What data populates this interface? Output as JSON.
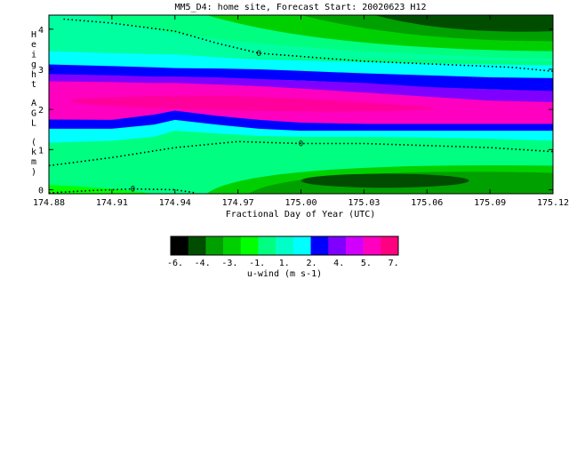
{
  "chart_data": {
    "type": "contour",
    "title": "MM5_D4: home site,  Forecast Start: 20020623 H12",
    "xlabel": "Fractional Day of Year (UTC)",
    "ylabel": "Height AGL (km)",
    "xlim": [
      174.88,
      175.12
    ],
    "ylim": [
      -0.1,
      4.35
    ],
    "x_ticks": [
      "174.88",
      "174.91",
      "174.94",
      "174.97",
      "175.00",
      "175.03",
      "175.06",
      "175.09",
      "175.12"
    ],
    "y_ticks": [
      "0",
      "1",
      "2",
      "3",
      "4"
    ],
    "zero_contour_label": "0",
    "colorbar": {
      "label": "u-wind (m s-1)",
      "tick_labels": [
        "-6.",
        "-4.",
        "-3.",
        "-1.",
        "1.",
        "2.",
        "4.",
        "5.",
        "7."
      ],
      "colors": [
        "#000000",
        "#004d00",
        "#00a000",
        "#00d000",
        "#00ff00",
        "#00ff80",
        "#00ffc8",
        "#00ffff",
        "#0000ff",
        "#8000ff",
        "#d000ff",
        "#ff00c0",
        "#ff0080"
      ]
    },
    "field_bands": [
      {
        "label": "top dark negative core",
        "color": "#004d00",
        "x": [
          174.99,
          175.12
        ],
        "y": [
          3.85,
          4.25
        ]
      },
      {
        "label": "upper negative zone",
        "color": "#00d000",
        "x": [
          174.96,
          175.12
        ],
        "y": [
          3.55,
          4.25
        ]
      },
      {
        "label": "upper near-zero",
        "color": "#00ff80",
        "x": [
          174.88,
          175.12
        ],
        "y": [
          2.95,
          4.25
        ]
      },
      {
        "label": "cyan layer",
        "color": "#00ffff",
        "y_center": 3.15
      },
      {
        "label": "blue layer",
        "color": "#0000ff",
        "y_center": 2.95
      },
      {
        "label": "purple layer",
        "color": "#8000ff",
        "y_center": 2.75
      },
      {
        "label": "magenta jet",
        "color": "#ff00c0",
        "y_center": 2.25
      },
      {
        "label": "lower blue layer",
        "color": "#0000ff",
        "y_center": 1.55
      },
      {
        "label": "lower cyan layer",
        "color": "#00ffff",
        "y_center": 1.35
      },
      {
        "label": "lower near-zero",
        "color": "#00ff80",
        "y_center": 0.9
      },
      {
        "label": "near-surface negative",
        "color": "#00a000",
        "x": [
          174.96,
          175.12
        ],
        "y": [
          -0.1,
          0.6
        ]
      },
      {
        "label": "surface dark negative core",
        "color": "#004d00",
        "x": [
          175.0,
          175.08
        ],
        "y": [
          0.05,
          0.4
        ]
      }
    ],
    "zero_contours": [
      {
        "name": "upper",
        "points": [
          [
            174.887,
            4.25
          ],
          [
            174.91,
            4.15
          ],
          [
            174.94,
            3.95
          ],
          [
            174.96,
            3.65
          ],
          [
            174.98,
            3.4
          ],
          [
            175.03,
            3.2
          ],
          [
            175.1,
            3.05
          ],
          [
            175.12,
            2.95
          ]
        ]
      },
      {
        "name": "lower",
        "points": [
          [
            174.88,
            0.6
          ],
          [
            174.91,
            0.8
          ],
          [
            174.94,
            1.05
          ],
          [
            174.97,
            1.2
          ],
          [
            175.0,
            1.15
          ],
          [
            175.03,
            1.15
          ],
          [
            175.06,
            1.1
          ],
          [
            175.09,
            1.05
          ],
          [
            175.12,
            0.95
          ]
        ]
      },
      {
        "name": "surface",
        "points": [
          [
            174.88,
            -0.08
          ],
          [
            174.9,
            -0.02
          ],
          [
            174.92,
            0.02
          ],
          [
            174.94,
            0.0
          ],
          [
            174.95,
            -0.08
          ]
        ]
      }
    ]
  }
}
